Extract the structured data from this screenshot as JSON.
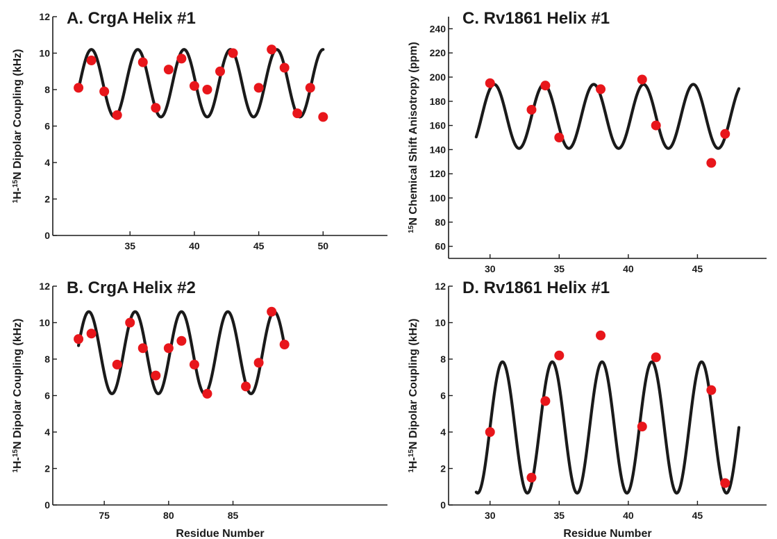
{
  "chart_data": [
    {
      "type": "scatter",
      "title": "A. CrgA Helix #1",
      "ylabel_parts": [
        {
          "t": "1",
          "sup": true
        },
        {
          "t": "H-"
        },
        {
          "t": "15",
          "sup": true
        },
        {
          "t": "N Dipolar Coupling (kHz)"
        }
      ],
      "xlabel": "",
      "xlim": [
        29,
        55
      ],
      "ylim": [
        0,
        12
      ],
      "xticks": [
        35,
        40,
        45,
        50
      ],
      "yticks": [
        0,
        2,
        4,
        6,
        8,
        10,
        12
      ],
      "curve": {
        "x_range": [
          31,
          50
        ],
        "center": 8.35,
        "amplitude": 1.85,
        "period": 3.6,
        "peak_at": 32.0
      },
      "points": [
        {
          "x": 31,
          "y": 8.1
        },
        {
          "x": 32,
          "y": 9.6
        },
        {
          "x": 33,
          "y": 7.9
        },
        {
          "x": 34,
          "y": 6.6
        },
        {
          "x": 36,
          "y": 9.5
        },
        {
          "x": 37,
          "y": 7.0
        },
        {
          "x": 38,
          "y": 9.1
        },
        {
          "x": 39,
          "y": 9.7
        },
        {
          "x": 40,
          "y": 8.2
        },
        {
          "x": 41,
          "y": 8.0
        },
        {
          "x": 42,
          "y": 9.0
        },
        {
          "x": 43,
          "y": 10.0
        },
        {
          "x": 45,
          "y": 8.1
        },
        {
          "x": 46,
          "y": 10.2
        },
        {
          "x": 47,
          "y": 9.2
        },
        {
          "x": 48,
          "y": 6.7
        },
        {
          "x": 49,
          "y": 8.1
        },
        {
          "x": 50,
          "y": 6.5
        }
      ]
    },
    {
      "type": "scatter",
      "title": "B. CrgA Helix #2",
      "ylabel_parts": [
        {
          "t": "1",
          "sup": true
        },
        {
          "t": "H-"
        },
        {
          "t": "15",
          "sup": true
        },
        {
          "t": "N Dipolar Coupling (kHz)"
        }
      ],
      "xlabel": "Residue Number",
      "xlim": [
        71,
        97
      ],
      "ylim": [
        0,
        12
      ],
      "xticks": [
        75,
        80,
        85
      ],
      "yticks": [
        0,
        2,
        4,
        6,
        8,
        10,
        12
      ],
      "curve": {
        "x_range": [
          73,
          89
        ],
        "center": 8.35,
        "amplitude": 2.25,
        "period": 3.6,
        "peak_at": 73.8
      },
      "points": [
        {
          "x": 73,
          "y": 9.1
        },
        {
          "x": 74,
          "y": 9.4
        },
        {
          "x": 76,
          "y": 7.7
        },
        {
          "x": 77,
          "y": 10.0
        },
        {
          "x": 78,
          "y": 8.6
        },
        {
          "x": 79,
          "y": 7.1
        },
        {
          "x": 80,
          "y": 8.6
        },
        {
          "x": 81,
          "y": 9.0
        },
        {
          "x": 82,
          "y": 7.7
        },
        {
          "x": 83,
          "y": 6.1
        },
        {
          "x": 86,
          "y": 6.5
        },
        {
          "x": 87,
          "y": 7.8
        },
        {
          "x": 88,
          "y": 10.6
        },
        {
          "x": 89,
          "y": 8.8
        }
      ]
    },
    {
      "type": "scatter",
      "title": "C. Rv1861 Helix #1",
      "ylabel_parts": [
        {
          "t": "15",
          "sup": true
        },
        {
          "t": "N Chemical Shift Anisotropy (ppm)"
        }
      ],
      "xlabel": "",
      "xlim": [
        27,
        50
      ],
      "ylim": [
        50,
        250
      ],
      "xticks": [
        30,
        35,
        40,
        45
      ],
      "yticks": [
        60,
        80,
        100,
        120,
        140,
        160,
        180,
        200,
        220,
        240
      ],
      "curve": {
        "x_range": [
          29,
          48
        ],
        "center": 167.5,
        "amplitude": 26.5,
        "period": 3.6,
        "peak_at": 30.3
      },
      "points": [
        {
          "x": 30,
          "y": 195
        },
        {
          "x": 33,
          "y": 173
        },
        {
          "x": 34,
          "y": 193
        },
        {
          "x": 35,
          "y": 150
        },
        {
          "x": 38,
          "y": 190
        },
        {
          "x": 41,
          "y": 198
        },
        {
          "x": 42,
          "y": 160
        },
        {
          "x": 46,
          "y": 129
        },
        {
          "x": 47,
          "y": 153
        }
      ]
    },
    {
      "type": "scatter",
      "title": "D. Rv1861 Helix #1",
      "ylabel_parts": [
        {
          "t": "1",
          "sup": true
        },
        {
          "t": "H-"
        },
        {
          "t": "15",
          "sup": true
        },
        {
          "t": "N Dipolar Coupling (kHz)"
        }
      ],
      "xlabel": "Residue Number",
      "xlim": [
        27,
        50
      ],
      "ylim": [
        0,
        12
      ],
      "xticks": [
        30,
        35,
        40,
        45
      ],
      "yticks": [
        0,
        2,
        4,
        6,
        8,
        10,
        12
      ],
      "curve": {
        "x_range": [
          29,
          48
        ],
        "center": 4.25,
        "amplitude": 3.6,
        "period": 3.6,
        "peak_at": 30.9
      },
      "points": [
        {
          "x": 30,
          "y": 4.0
        },
        {
          "x": 33,
          "y": 1.5
        },
        {
          "x": 34,
          "y": 5.7
        },
        {
          "x": 35,
          "y": 8.2
        },
        {
          "x": 38,
          "y": 9.3
        },
        {
          "x": 41,
          "y": 4.3
        },
        {
          "x": 42,
          "y": 8.1
        },
        {
          "x": 46,
          "y": 6.3
        },
        {
          "x": 47,
          "y": 1.2
        }
      ]
    }
  ],
  "colors": {
    "points": "#e8161b",
    "curve": "#1a1a1a",
    "axis": "#1a1a1a"
  }
}
